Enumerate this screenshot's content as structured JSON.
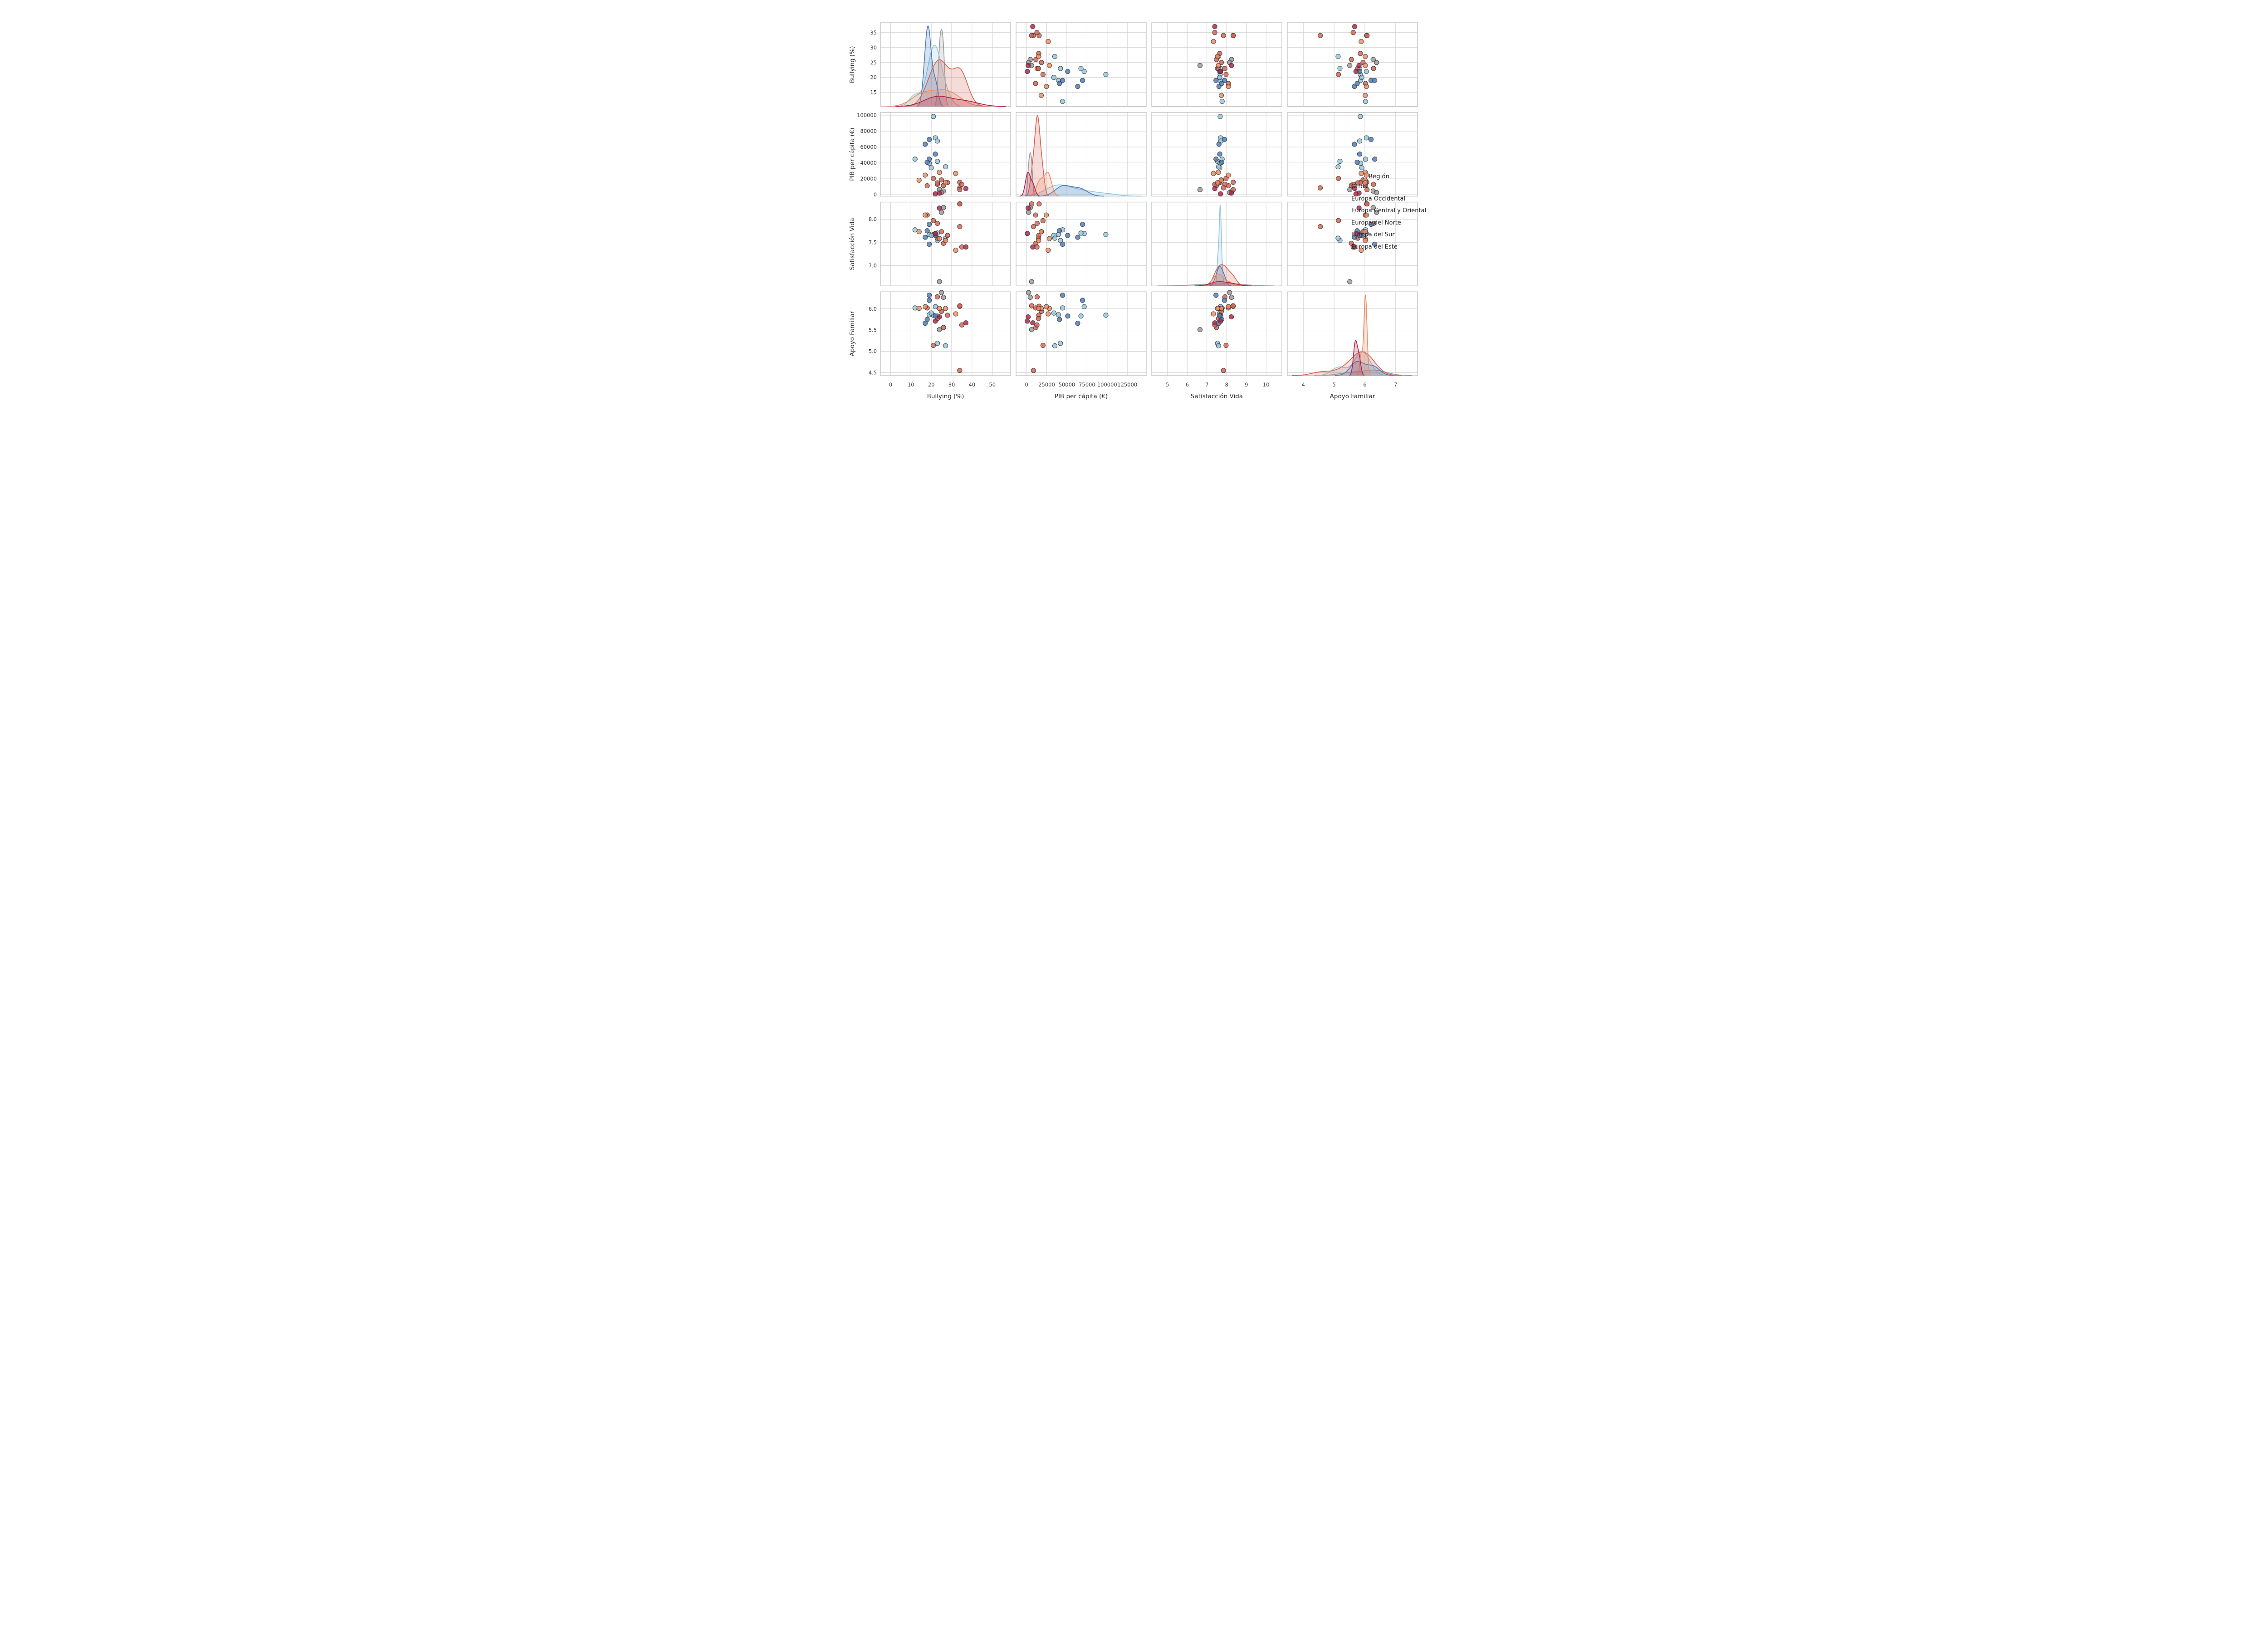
{
  "figure": {
    "background": "#ffffff",
    "grid_color": "#d2d2d2",
    "spine_color": "#c4c4c4",
    "tick_label_color": "#3a3a3a",
    "axis_label_color": "#2e2e2e",
    "marker_edge_color": "#2e2e2e",
    "marker_fill_opacity": 0.82,
    "kde_fill_opacity": 0.22
  },
  "chart_data": {
    "type": "scatter",
    "subtype": "pairplot-matrix-4x4",
    "grid": "on",
    "diagonal": "kde",
    "legend": {
      "title": "Región",
      "position": "right-middle",
      "markers_visible": false,
      "items": [
        {
          "label": "Otros",
          "color": "#999999"
        },
        {
          "label": "Europa Occidental",
          "color": "#92c5de"
        },
        {
          "label": "Europa Central y Oriental",
          "color": "#d6604d"
        },
        {
          "label": "Europa del Norte",
          "color": "#4a7ab8"
        },
        {
          "label": "Europa del Sur",
          "color": "#ef8a62"
        },
        {
          "label": "Europa del Este",
          "color": "#ad2146"
        }
      ]
    },
    "variables": [
      {
        "key": "bullying",
        "label": "Bullying (%)",
        "x_range": [
          -5,
          59
        ],
        "y_range": [
          10.3,
          38.3
        ],
        "x_ticks": [
          0,
          10,
          20,
          30,
          40,
          50
        ],
        "y_ticks": [
          15,
          20,
          25,
          30,
          35
        ],
        "x_decimals": 0,
        "y_decimals": 0
      },
      {
        "key": "pib",
        "label": "PIB per cápita (€)",
        "x_range": [
          -13000,
          148500
        ],
        "y_range": [
          -1900,
          103600
        ],
        "x_ticks": [
          0,
          25000,
          50000,
          75000,
          100000,
          125000
        ],
        "y_ticks": [
          0,
          20000,
          40000,
          60000,
          80000,
          100000
        ],
        "x_decimals": 0,
        "y_decimals": 0
      },
      {
        "key": "satisfaccion",
        "label": "Satisfacción Vida",
        "x_range": [
          4.2,
          10.8
        ],
        "y_range": [
          6.56,
          8.37
        ],
        "x_ticks": [
          5,
          6,
          7,
          8,
          9,
          10
        ],
        "y_ticks": [
          7.0,
          7.5,
          8.0
        ],
        "x_decimals": 0,
        "y_decimals": 1
      },
      {
        "key": "apoyo",
        "label": "Apoyo Familiar",
        "x_range": [
          3.48,
          7.71
        ],
        "y_range": [
          4.43,
          6.4
        ],
        "x_ticks": [
          4,
          5,
          6,
          7
        ],
        "y_ticks": [
          4.5,
          5.0,
          5.5,
          6.0
        ],
        "x_decimals": 0,
        "y_decimals": 1
      }
    ],
    "series": [
      {
        "name": "Otros",
        "color": "#999999",
        "points": [
          {
            "bullying": 24,
            "pib": 6300,
            "satisfaccion": 6.65,
            "apoyo": 5.51
          },
          {
            "bullying": 26,
            "pib": 4600,
            "satisfaccion": 8.25,
            "apoyo": 6.27
          },
          {
            "bullying": 25,
            "pib": 2600,
            "satisfaccion": 8.15,
            "apoyo": 6.38
          }
        ]
      },
      {
        "name": "Europa Occidental",
        "color": "#92c5de",
        "points": [
          {
            "bullying": 12,
            "pib": 44700,
            "satisfaccion": 7.77,
            "apoyo": 6.02
          },
          {
            "bullying": 21,
            "pib": 98400,
            "satisfaccion": 7.67,
            "apoyo": 5.85
          },
          {
            "bullying": 22,
            "pib": 71500,
            "satisfaccion": 7.69,
            "apoyo": 6.05
          },
          {
            "bullying": 23,
            "pib": 67500,
            "satisfaccion": 7.7,
            "apoyo": 5.83
          },
          {
            "bullying": 23,
            "pib": 42000,
            "satisfaccion": 7.54,
            "apoyo": 5.19
          },
          {
            "bullying": 19,
            "pib": 39600,
            "satisfaccion": 7.67,
            "apoyo": 5.86
          },
          {
            "bullying": 20,
            "pib": 33900,
            "satisfaccion": 7.65,
            "apoyo": 5.9
          },
          {
            "bullying": 27,
            "pib": 35100,
            "satisfaccion": 7.59,
            "apoyo": 5.13
          }
        ]
      },
      {
        "name": "Europa Central y Oriental",
        "color": "#d6604d",
        "points": [
          {
            "bullying": 18,
            "pib": 11200,
            "satisfaccion": 8.09,
            "apoyo": 6.02
          },
          {
            "bullying": 21,
            "pib": 20400,
            "satisfaccion": 7.97,
            "apoyo": 5.14
          },
          {
            "bullying": 23,
            "pib": 13100,
            "satisfaccion": 7.91,
            "apoyo": 6.28
          },
          {
            "bullying": 25,
            "pib": 18500,
            "satisfaccion": 7.73,
            "apoyo": 5.94
          },
          {
            "bullying": 28,
            "pib": 15200,
            "satisfaccion": 7.65,
            "apoyo": 5.85
          },
          {
            "bullying": 23,
            "pib": 14800,
            "satisfaccion": 7.59,
            "apoyo": 5.77
          },
          {
            "bullying": 26,
            "pib": 11600,
            "satisfaccion": 7.48,
            "apoyo": 5.56
          },
          {
            "bullying": 34,
            "pib": 15600,
            "satisfaccion": 8.33,
            "apoyo": 6.06
          },
          {
            "bullying": 34,
            "pib": 8600,
            "satisfaccion": 7.84,
            "apoyo": 4.55
          },
          {
            "bullying": 35,
            "pib": 12900,
            "satisfaccion": 7.4,
            "apoyo": 5.62
          },
          {
            "bullying": 34,
            "pib": 6300,
            "satisfaccion": 8.33,
            "apoyo": 6.07
          }
        ]
      },
      {
        "name": "Europa del Norte",
        "color": "#4a7ab8",
        "points": [
          {
            "bullying": 19,
            "pib": 69500,
            "satisfaccion": 7.89,
            "apoyo": 6.2
          },
          {
            "bullying": 17,
            "pib": 63500,
            "satisfaccion": 7.61,
            "apoyo": 5.66
          },
          {
            "bullying": 22,
            "pib": 51100,
            "satisfaccion": 7.65,
            "apoyo": 5.83
          },
          {
            "bullying": 19,
            "pib": 44700,
            "satisfaccion": 7.46,
            "apoyo": 6.32
          },
          {
            "bullying": 18,
            "pib": 40800,
            "satisfaccion": 7.75,
            "apoyo": 5.75
          }
        ]
      },
      {
        "name": "Europa del Sur",
        "color": "#ef8a62",
        "points": [
          {
            "bullying": 24,
            "pib": 28300,
            "satisfaccion": 7.58,
            "apoyo": 6.01
          },
          {
            "bullying": 32,
            "pib": 26800,
            "satisfaccion": 7.33,
            "apoyo": 5.88
          },
          {
            "bullying": 17,
            "pib": 24600,
            "satisfaccion": 8.09,
            "apoyo": 6.05
          },
          {
            "bullying": 14,
            "pib": 18200,
            "satisfaccion": 7.73,
            "apoyo": 6.01
          },
          {
            "bullying": 27,
            "pib": 15000,
            "satisfaccion": 7.54,
            "apoyo": 6.01
          }
        ]
      },
      {
        "name": "Europa del Este",
        "color": "#ad2146",
        "points": [
          {
            "bullying": 24,
            "pib": 2000,
            "satisfaccion": 8.24,
            "apoyo": 5.81
          },
          {
            "bullying": 22,
            "pib": 950,
            "satisfaccion": 7.69,
            "apoyo": 5.71
          },
          {
            "bullying": 37,
            "pib": 7700,
            "satisfaccion": 7.4,
            "apoyo": 5.67
          }
        ]
      }
    ]
  }
}
